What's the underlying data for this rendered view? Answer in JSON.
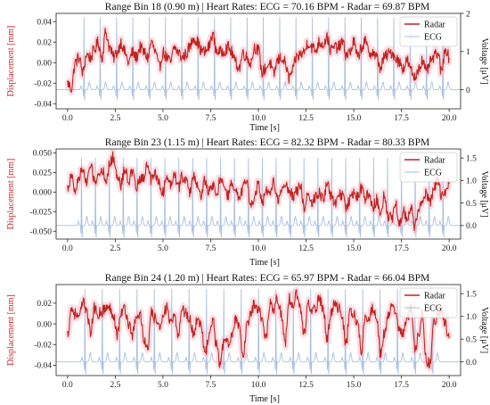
{
  "chart_data": [
    {
      "type": "line",
      "title": "Range Bin 18 (0.90 m)  |  Heart Rates: ECG = 70.16 BPM - Radar = 69.87 BPM",
      "xlabel": "Time [s]",
      "ylabel_left": "Displacement [mm]",
      "ylabel_right": "Voltage [μV]",
      "xlim": [
        -0.6,
        20.6
      ],
      "ylim_left": [
        -0.045,
        0.048
      ],
      "ylim_right": [
        -0.5,
        2.0
      ],
      "x_ticks": [
        "0.0",
        "2.5",
        "5.0",
        "7.5",
        "10.0",
        "12.5",
        "15.0",
        "17.5",
        "20.0"
      ],
      "y_ticks_left": [
        "0.04",
        "0.02",
        "0.00",
        "-0.02",
        "-0.04"
      ],
      "y_ticks_right": [
        "2",
        "1",
        "0"
      ],
      "heart_rate_ecg_bpm": 70.16,
      "heart_rate_radar_bpm": 69.87,
      "series": [
        {
          "name": "Radar",
          "color": "#c0221f",
          "axis": "left",
          "x_range": [
            0,
            20
          ],
          "values": [
            -0.02,
            -0.025,
            0.0,
            0.005,
            -0.01,
            0.008,
            0.005,
            0.012,
            0.02,
            0.005,
            0.03,
            0.015,
            0.005,
            0.01,
            0.02,
            0.01,
            0.0,
            0.01,
            0.005,
            0.015,
            0.01,
            0.005,
            0.02,
            0.01,
            -0.005,
            0.01,
            0.005,
            0.0,
            0.015,
            0.01,
            0.005,
            0.008,
            0.015,
            0.025,
            0.02,
            0.012,
            0.01,
            0.015,
            0.028,
            0.012,
            0.01,
            0.012,
            0.015,
            0.01,
            0.0,
            -0.005,
            0.01,
            0.005,
            0.0,
            0.015,
            0.012,
            -0.01,
            -0.005,
            0.0,
            -0.012,
            0.002,
            0.005,
            0.0,
            -0.015,
            -0.008,
            0.005,
            0.008,
            0.01,
            0.02,
            0.015,
            0.012,
            0.02,
            0.018,
            0.025,
            0.012,
            0.015,
            0.015,
            0.02,
            0.008,
            0.01,
            0.02,
            0.005,
            0.015,
            0.02,
            0.01,
            0.01,
            0.005,
            -0.005,
            0.005,
            0.008,
            0.01,
            0.005,
            0.0,
            -0.005,
            0.002,
            -0.008,
            -0.015,
            -0.005,
            0.002,
            -0.01,
            0.0,
            0.005,
            0.01,
            -0.01,
            0.015,
            0.005
          ]
        },
        {
          "name": "ECG",
          "color": "#a9bfdf",
          "axis": "right",
          "r_peak_uv": 1.9,
          "baseline_uv": 0.0,
          "beat_times_s": [
            0.86,
            1.71,
            2.57,
            3.42,
            4.28,
            5.13,
            5.99,
            6.84,
            7.7,
            8.55,
            9.41,
            10.26,
            11.12,
            11.97,
            12.83,
            13.68,
            14.54,
            15.39,
            16.25,
            17.1,
            17.96,
            18.81,
            19.67
          ]
        }
      ],
      "legend": [
        "Radar",
        "ECG"
      ],
      "legend_position": "top-right"
    },
    {
      "type": "line",
      "title": "Range Bin 23 (1.15 m)  |  Heart Rates: ECG = 82.32 BPM - Radar = 80.33 BPM",
      "xlabel": "Time [s]",
      "ylabel_left": "Displacement [mm]",
      "ylabel_right": "Voltage [μV]",
      "xlim": [
        -0.6,
        20.6
      ],
      "ylim_left": [
        -0.06,
        0.055
      ],
      "ylim_right": [
        -0.3,
        1.7
      ],
      "x_ticks": [
        "0.0",
        "2.5",
        "5.0",
        "7.5",
        "10.0",
        "12.5",
        "15.0",
        "17.5",
        "20.0"
      ],
      "y_ticks_left": [
        "0.050",
        "0.025",
        "0.000",
        "-0.025",
        "-0.050"
      ],
      "y_ticks_right": [
        "1.5",
        "1.0",
        "0.5",
        "0.0"
      ],
      "heart_rate_ecg_bpm": 82.32,
      "heart_rate_radar_bpm": 80.33,
      "series": [
        {
          "name": "Radar",
          "color": "#c0221f",
          "axis": "left",
          "x_range": [
            0,
            20
          ],
          "values": [
            0.005,
            0.02,
            0.0,
            0.02,
            0.03,
            0.01,
            0.035,
            0.015,
            0.02,
            0.03,
            0.015,
            0.035,
            0.045,
            0.02,
            0.01,
            0.03,
            0.015,
            0.025,
            0.005,
            0.015,
            0.02,
            0.035,
            0.015,
            0.025,
            0.01,
            0.0,
            0.02,
            0.01,
            0.025,
            0.005,
            0.02,
            0.015,
            0.0,
            0.02,
            0.01,
            -0.005,
            0.015,
            0.0,
            0.01,
            -0.005,
            0.015,
            0.01,
            -0.005,
            0.01,
            0.0,
            -0.01,
            0.005,
            0.015,
            -0.02,
            -0.005,
            0.01,
            -0.015,
            0.0,
            -0.005,
            0.015,
            -0.01,
            0.0,
            0.01,
            0.005,
            -0.005,
            0.0,
            0.01,
            -0.02,
            0.0,
            -0.015,
            -0.005,
            0.0,
            -0.01,
            0.01,
            -0.005,
            -0.015,
            0.0,
            -0.005,
            -0.02,
            -0.01,
            0.0,
            -0.005,
            0.005,
            -0.01,
            0.0,
            -0.02,
            -0.01,
            -0.025,
            -0.005,
            -0.03,
            -0.035,
            -0.015,
            -0.04,
            -0.025,
            -0.035,
            -0.02,
            -0.045,
            -0.025,
            -0.01,
            0.0,
            -0.015,
            0.005,
            0.015,
            -0.005,
            0.0,
            0.01
          ]
        },
        {
          "name": "ECG",
          "color": "#a9bfdf",
          "axis": "right",
          "r_peak_uv": 1.5,
          "baseline_uv": 0.0,
          "beat_times_s": [
            0.73,
            1.46,
            2.19,
            2.92,
            3.64,
            4.37,
            5.1,
            5.83,
            6.56,
            7.29,
            8.02,
            8.75,
            9.48,
            10.21,
            10.93,
            11.66,
            12.39,
            13.12,
            13.85,
            14.58,
            15.31,
            16.04,
            16.77,
            17.5,
            18.22,
            18.95,
            19.68
          ]
        }
      ],
      "legend": [
        "Radar",
        "ECG"
      ],
      "legend_position": "top-right"
    },
    {
      "type": "line",
      "title": "Range Bin 24 (1.20 m)  |  Heart Rates: ECG = 65.97 BPM - Radar = 66.04 BPM",
      "xlabel": "Time [s]",
      "ylabel_left": "Displacement [mm]",
      "ylabel_right": "Voltage [μV]",
      "xlim": [
        -0.6,
        20.6
      ],
      "ylim_left": [
        -0.05,
        0.038
      ],
      "ylim_right": [
        -0.3,
        1.7
      ],
      "x_ticks": [
        "0.0",
        "2.5",
        "5.0",
        "7.5",
        "10.0",
        "12.5",
        "15.0",
        "17.5",
        "20.0"
      ],
      "y_ticks_left": [
        "0.02",
        "0.00",
        "-0.02",
        "-0.04"
      ],
      "y_ticks_right": [
        "1.5",
        "1.0",
        "0.5",
        "0.0"
      ],
      "heart_rate_ecg_bpm": 65.97,
      "heart_rate_radar_bpm": 66.04,
      "series": [
        {
          "name": "Radar",
          "color": "#c0221f",
          "axis": "left",
          "x_range": [
            0,
            20
          ],
          "values": [
            -0.01,
            0.015,
            0.01,
            0.005,
            0.02,
            0.015,
            -0.01,
            0.015,
            0.01,
            0.012,
            0.015,
            0.015,
            0.01,
            -0.01,
            0.01,
            0.015,
            0.0,
            -0.01,
            0.005,
            0.01,
            -0.015,
            -0.025,
            0.01,
            0.005,
            -0.005,
            0.01,
            0.015,
            0.0,
            0.005,
            -0.01,
            0.015,
            0.01,
            0.005,
            -0.01,
            0.005,
            0.0,
            -0.03,
            -0.015,
            0.005,
            -0.02,
            -0.04,
            -0.015,
            -0.02,
            -0.01,
            0.005,
            -0.005,
            -0.035,
            0.0,
            0.01,
            0.02,
            0.015,
            0.005,
            -0.015,
            0.02,
            0.015,
            0.025,
            0.01,
            -0.02,
            0.025,
            0.015,
            0.03,
            0.015,
            -0.01,
            0.02,
            0.01,
            0.015,
            0.025,
            0.015,
            -0.015,
            0.01,
            0.02,
            0.015,
            0.005,
            -0.02,
            0.015,
            0.01,
            0.0,
            -0.025,
            0.01,
            0.005,
            0.015,
            0.005,
            -0.03,
            -0.01,
            0.01,
            0.015,
            0.01,
            -0.005,
            -0.01,
            0.005,
            0.015,
            -0.025,
            -0.01,
            0.01,
            -0.035,
            -0.04,
            0.0,
            0.01,
            0.015,
            0.0,
            -0.015
          ]
        },
        {
          "name": "ECG",
          "color": "#a9bfdf",
          "axis": "right",
          "r_peak_uv": 1.6,
          "baseline_uv": 0.0,
          "beat_times_s": [
            0.91,
            1.82,
            2.73,
            3.64,
            4.55,
            5.46,
            6.37,
            7.28,
            8.19,
            9.1,
            10.01,
            10.92,
            11.83,
            12.74,
            13.65,
            14.56,
            15.47,
            16.38,
            17.29,
            18.2,
            19.11
          ]
        }
      ],
      "legend": [
        "Radar",
        "ECG"
      ],
      "legend_position": "top-right"
    }
  ]
}
